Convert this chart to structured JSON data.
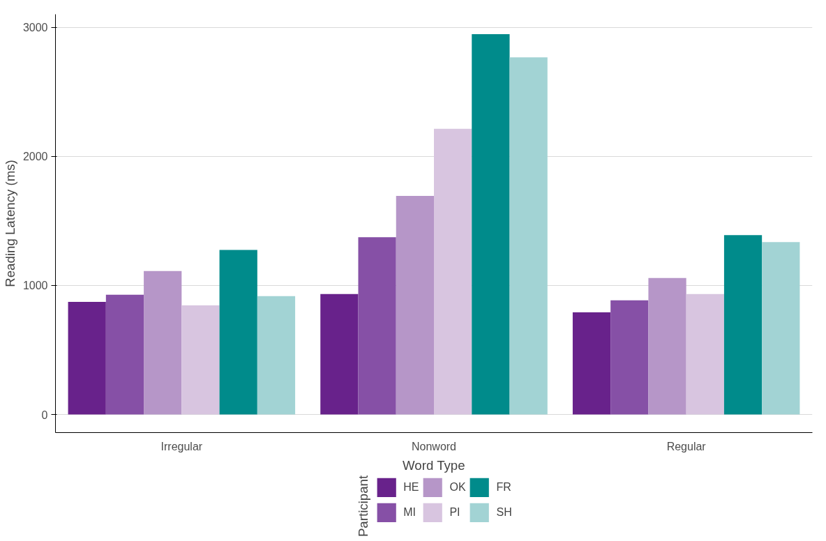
{
  "chart_data": {
    "type": "bar",
    "xlabel": "Word Type",
    "ylabel": "Reading Latency (ms)",
    "legend_title": "Participant",
    "categories": [
      "Irregular",
      "Nonword",
      "Regular"
    ],
    "series": [
      {
        "name": "HE",
        "color": "#68228b",
        "values": [
          873,
          933,
          792
        ]
      },
      {
        "name": "MI",
        "color": "#8650a6",
        "values": [
          928,
          1373,
          884
        ]
      },
      {
        "name": "OK",
        "color": "#b696c8",
        "values": [
          1112,
          1693,
          1058
        ]
      },
      {
        "name": "PI",
        "color": "#d8c5e0",
        "values": [
          846,
          2213,
          933
        ]
      },
      {
        "name": "FR",
        "color": "#008b8b",
        "values": [
          1275,
          2946,
          1389
        ]
      },
      {
        "name": "SH",
        "color": "#a2d3d4",
        "values": [
          917,
          2767,
          1335
        ]
      }
    ],
    "ylim": [
      -140,
      3100
    ],
    "yticks": [
      0,
      1000,
      2000,
      3000
    ],
    "grid": "y",
    "legend": "bottom"
  }
}
